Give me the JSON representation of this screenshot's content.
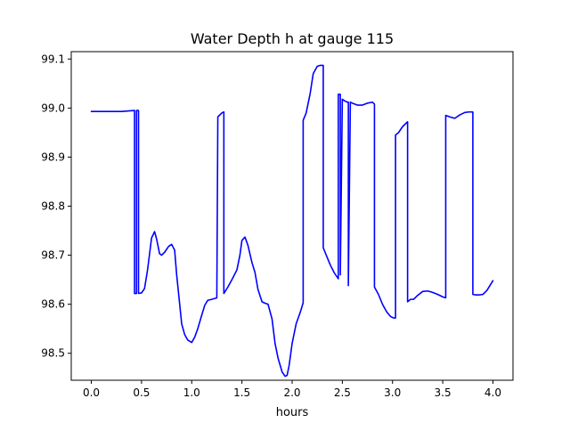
{
  "chart_data": {
    "type": "line",
    "title": "Water Depth h at gauge 115",
    "xlabel": "hours",
    "ylabel": "",
    "xlim": [
      -0.2,
      4.2
    ],
    "ylim": [
      98.445,
      99.115
    ],
    "xticks": [
      0.0,
      0.5,
      1.0,
      1.5,
      2.0,
      2.5,
      3.0,
      3.5,
      4.0
    ],
    "xtick_labels": [
      "0.0",
      "0.5",
      "1.0",
      "1.5",
      "2.0",
      "2.5",
      "3.0",
      "3.5",
      "4.0"
    ],
    "yticks": [
      98.5,
      98.6,
      98.7,
      98.8,
      98.9,
      99.0,
      99.1
    ],
    "ytick_labels": [
      "98.5",
      "98.6",
      "98.7",
      "98.8",
      "98.9",
      "99.0",
      "99.1"
    ],
    "grid": false,
    "series": [
      {
        "color": "#0000ff",
        "x": [
          0.0,
          0.1,
          0.2,
          0.3,
          0.43,
          0.43,
          0.45,
          0.45,
          0.47,
          0.47,
          0.5,
          0.53,
          0.56,
          0.6,
          0.63,
          0.65,
          0.68,
          0.7,
          0.73,
          0.77,
          0.8,
          0.83,
          0.85,
          0.88,
          0.9,
          0.93,
          0.96,
          1.0,
          1.03,
          1.06,
          1.1,
          1.13,
          1.16,
          1.2,
          1.25,
          1.26,
          1.26,
          1.3,
          1.32,
          1.32,
          1.36,
          1.4,
          1.45,
          1.48,
          1.5,
          1.53,
          1.56,
          1.6,
          1.63,
          1.66,
          1.7,
          1.73,
          1.76,
          1.8,
          1.83,
          1.86,
          1.9,
          1.93,
          1.95,
          1.97,
          2.0,
          2.04,
          2.08,
          2.11,
          2.11,
          2.14,
          2.18,
          2.21,
          2.25,
          2.28,
          2.31,
          2.31,
          2.34,
          2.38,
          2.42,
          2.45,
          2.46,
          2.46,
          2.48,
          2.48,
          2.5,
          2.52,
          2.55,
          2.56,
          2.56,
          2.58,
          2.6,
          2.65,
          2.7,
          2.75,
          2.8,
          2.82,
          2.82,
          2.86,
          2.9,
          2.94,
          2.98,
          3.01,
          3.03,
          3.03,
          3.06,
          3.1,
          3.15,
          3.15,
          3.18,
          3.21,
          3.25,
          3.3,
          3.35,
          3.4,
          3.45,
          3.5,
          3.53,
          3.53,
          3.57,
          3.62,
          3.67,
          3.72,
          3.76,
          3.8,
          3.8,
          3.83,
          3.86,
          3.9,
          3.94,
          3.97,
          4.0
        ],
        "y": [
          98.993,
          98.993,
          98.993,
          98.993,
          98.995,
          98.622,
          98.622,
          98.995,
          98.995,
          98.622,
          98.623,
          98.632,
          98.67,
          98.735,
          98.748,
          98.733,
          98.703,
          98.7,
          98.706,
          98.718,
          98.722,
          98.71,
          98.66,
          98.6,
          98.56,
          98.538,
          98.527,
          98.522,
          98.533,
          98.55,
          98.578,
          98.598,
          98.608,
          98.61,
          98.613,
          98.982,
          98.982,
          98.99,
          98.992,
          98.622,
          98.635,
          98.65,
          98.67,
          98.7,
          98.73,
          98.737,
          98.72,
          98.685,
          98.665,
          98.63,
          98.605,
          98.602,
          98.6,
          98.57,
          98.52,
          98.49,
          98.462,
          98.453,
          98.455,
          98.475,
          98.52,
          98.56,
          98.583,
          98.603,
          98.975,
          98.99,
          99.03,
          99.07,
          99.085,
          99.087,
          99.087,
          98.715,
          98.7,
          98.68,
          98.664,
          98.655,
          98.652,
          99.028,
          99.028,
          98.66,
          99.018,
          99.015,
          99.012,
          99.012,
          98.638,
          99.012,
          99.01,
          99.006,
          99.006,
          99.01,
          99.012,
          99.008,
          98.635,
          98.62,
          98.6,
          98.585,
          98.575,
          98.572,
          98.572,
          98.945,
          98.95,
          98.962,
          98.972,
          98.605,
          98.61,
          98.61,
          98.618,
          98.626,
          98.627,
          98.624,
          98.62,
          98.615,
          98.613,
          98.985,
          98.982,
          98.979,
          98.986,
          98.991,
          98.992,
          98.992,
          98.62,
          98.619,
          98.619,
          98.62,
          98.628,
          98.638,
          98.648
        ]
      }
    ]
  }
}
